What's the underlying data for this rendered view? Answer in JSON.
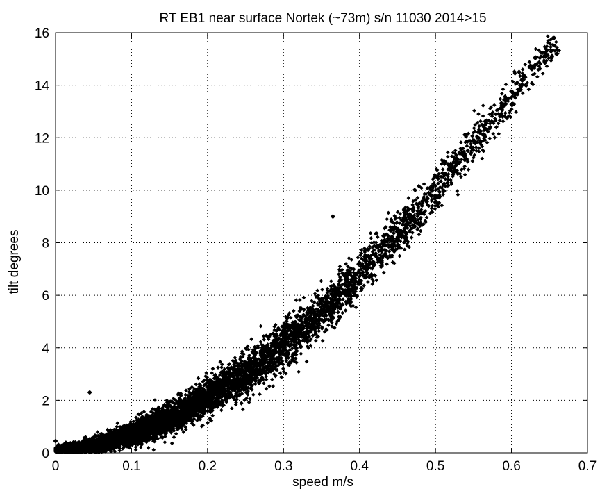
{
  "chart_data": {
    "type": "scatter",
    "title": "RT EB1 near surface Nortek (~73m) s/n 11030 2014>15",
    "xlabel": "speed m/s",
    "ylabel": "tilt degrees",
    "xlim": [
      0,
      0.7
    ],
    "ylim": [
      0,
      16
    ],
    "xticks": [
      0,
      0.1,
      0.2,
      0.3,
      0.4,
      0.5,
      0.6,
      0.7
    ],
    "yticks": [
      0,
      2,
      4,
      6,
      8,
      10,
      12,
      14,
      16
    ],
    "xtick_labels": [
      "0",
      "0.1",
      "0.2",
      "0.3",
      "0.4",
      "0.5",
      "0.6",
      "0.7"
    ],
    "ytick_labels": [
      "0",
      "2",
      "4",
      "6",
      "8",
      "10",
      "12",
      "14",
      "16"
    ],
    "grid": true,
    "marker_color": "#000000",
    "trend": [
      {
        "x": 0.0,
        "y": 0.12
      },
      {
        "x": 0.05,
        "y": 0.25
      },
      {
        "x": 0.1,
        "y": 0.7
      },
      {
        "x": 0.15,
        "y": 1.3
      },
      {
        "x": 0.2,
        "y": 2.1
      },
      {
        "x": 0.25,
        "y": 3.0
      },
      {
        "x": 0.3,
        "y": 4.1
      },
      {
        "x": 0.35,
        "y": 5.3
      },
      {
        "x": 0.4,
        "y": 6.8
      },
      {
        "x": 0.45,
        "y": 8.3
      },
      {
        "x": 0.5,
        "y": 10.0
      },
      {
        "x": 0.55,
        "y": 11.8
      },
      {
        "x": 0.6,
        "y": 13.5
      },
      {
        "x": 0.65,
        "y": 15.4
      }
    ],
    "notable_points": [
      {
        "x": 0.365,
        "y": 9.0
      },
      {
        "x": 0.655,
        "y": 15.8
      },
      {
        "x": 0.66,
        "y": 15.2
      },
      {
        "x": 0.61,
        "y": 14.5
      },
      {
        "x": 0.045,
        "y": 2.3
      },
      {
        "x": 0.0,
        "y": 0.45
      }
    ]
  }
}
